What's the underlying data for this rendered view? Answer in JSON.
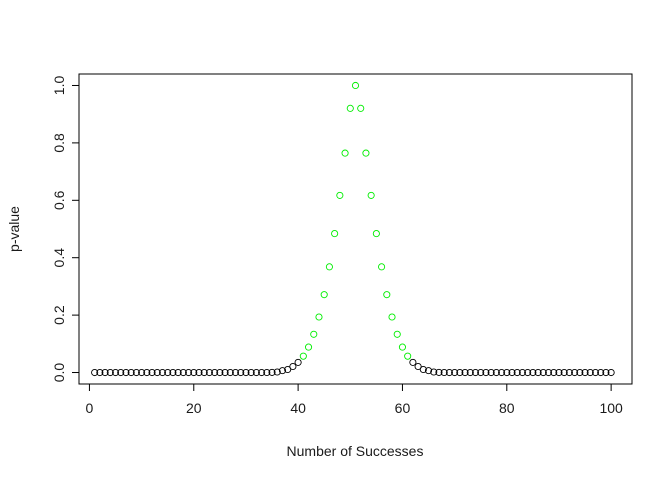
{
  "chart_data": {
    "type": "scatter",
    "title": "",
    "xlabel": "Number of Successes",
    "ylabel": "p-value",
    "xlim": [
      -2,
      104
    ],
    "ylim": [
      -0.04,
      1.04
    ],
    "xticks": [
      0,
      20,
      40,
      60,
      80,
      100
    ],
    "xtick_labels": [
      "0",
      "20",
      "40",
      "60",
      "80",
      "100"
    ],
    "yticks": [
      0,
      0.2,
      0.4,
      0.6,
      0.8,
      1.0
    ],
    "ytick_labels": [
      "0.0",
      "0.2",
      "0.4",
      "0.6",
      "0.8",
      "1.0"
    ],
    "grid": false,
    "legend": "none",
    "marker": "open-circle",
    "colors": {
      "significant": "#000000",
      "not_significant": "#00ee00"
    },
    "x": [
      1,
      2,
      3,
      4,
      5,
      6,
      7,
      8,
      9,
      10,
      11,
      12,
      13,
      14,
      15,
      16,
      17,
      18,
      19,
      20,
      21,
      22,
      23,
      24,
      25,
      26,
      27,
      28,
      29,
      30,
      31,
      32,
      33,
      34,
      35,
      36,
      37,
      38,
      39,
      40,
      41,
      42,
      43,
      44,
      45,
      46,
      47,
      48,
      49,
      50,
      51,
      52,
      53,
      54,
      55,
      56,
      57,
      58,
      59,
      60,
      61,
      62,
      63,
      64,
      65,
      66,
      67,
      68,
      69,
      70,
      71,
      72,
      73,
      74,
      75,
      76,
      77,
      78,
      79,
      80,
      81,
      82,
      83,
      84,
      85,
      86,
      87,
      88,
      89,
      90,
      91,
      92,
      93,
      94,
      95,
      96,
      97,
      98,
      99,
      100
    ],
    "y": [
      0,
      0,
      0,
      0,
      0,
      0,
      0,
      0,
      0,
      0,
      0,
      0,
      0,
      0,
      0,
      0,
      0,
      0,
      0,
      0,
      0,
      0,
      0,
      0,
      0,
      0,
      0,
      0,
      0,
      0,
      0,
      0,
      0,
      0.0001,
      0.0004,
      0.0018,
      0.0066,
      0.0105,
      0.021,
      0.0352,
      0.0569,
      0.0886,
      0.1332,
      0.1934,
      0.2713,
      0.3682,
      0.4841,
      0.6171,
      0.7644,
      0.9204,
      1.0,
      0.9204,
      0.7644,
      0.6171,
      0.4841,
      0.3682,
      0.2713,
      0.1934,
      0.1332,
      0.0886,
      0.0569,
      0.0352,
      0.021,
      0.0105,
      0.0066,
      0.0018,
      0.0004,
      0.0001,
      0,
      0,
      0,
      0,
      0,
      0,
      0,
      0,
      0,
      0,
      0,
      0,
      0,
      0,
      0,
      0,
      0,
      0,
      0,
      0,
      0,
      0,
      0,
      0,
      0,
      0,
      0,
      0,
      0,
      0,
      0,
      0
    ],
    "significance_threshold": 0.05
  }
}
